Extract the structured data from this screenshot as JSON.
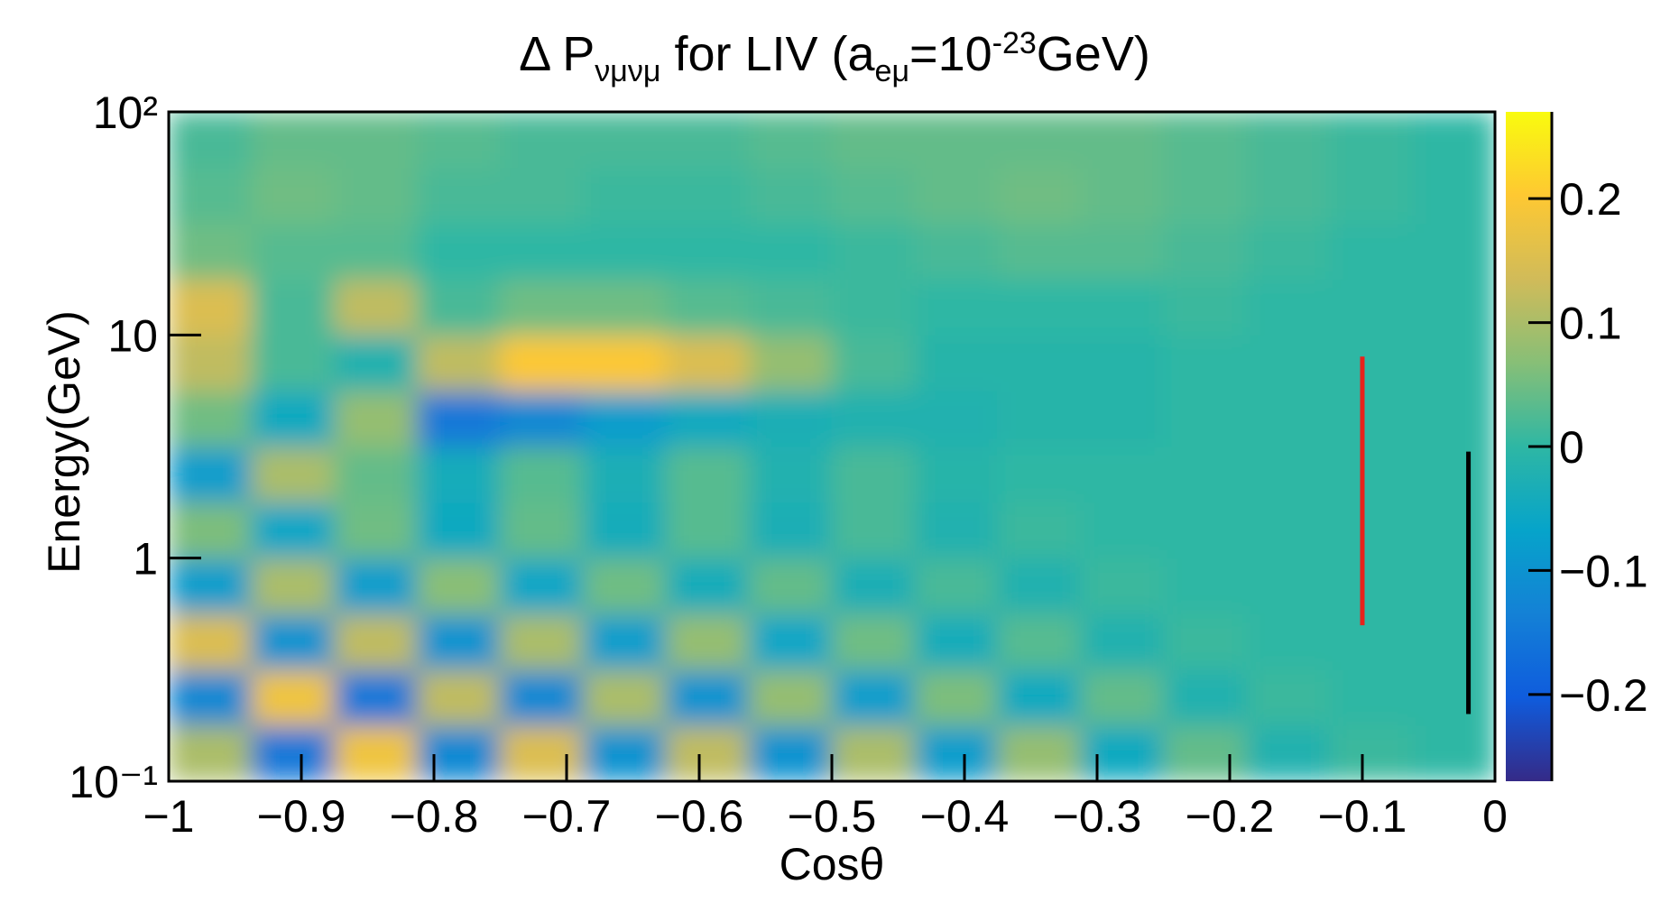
{
  "chart_data": {
    "type": "heatmap",
    "title_parts": [
      {
        "text": "Δ P"
      },
      {
        "text": "νμνμ",
        "shift": "sub"
      },
      {
        "text": " for LIV (a"
      },
      {
        "text": "eμ",
        "shift": "sub"
      },
      {
        "text": "=10"
      },
      {
        "text": "-23",
        "shift": "super"
      },
      {
        "text": "GeV)"
      }
    ],
    "x_label": "Cosθ",
    "y_label": "Energy(GeV)",
    "xlim": [
      -1,
      0
    ],
    "ylim": [
      0.1,
      100
    ],
    "y_log": true,
    "zlim": [
      -0.27,
      0.27
    ],
    "xticks": [
      {
        "value": -1,
        "label": "−1"
      },
      {
        "value": -0.9,
        "label": "−0.9"
      },
      {
        "value": -0.8,
        "label": "−0.8"
      },
      {
        "value": -0.7,
        "label": "−0.7"
      },
      {
        "value": -0.6,
        "label": "−0.6"
      },
      {
        "value": -0.5,
        "label": "−0.5"
      },
      {
        "value": -0.4,
        "label": "−0.4"
      },
      {
        "value": -0.3,
        "label": "−0.3"
      },
      {
        "value": -0.2,
        "label": "−0.2"
      },
      {
        "value": -0.1,
        "label": "−0.1"
      },
      0
    ],
    "yticks": [
      {
        "value": 0.1,
        "label": "10⁻¹"
      },
      1,
      10,
      {
        "value": 100,
        "label": "10²"
      }
    ],
    "zticks": [
      {
        "value": -0.2,
        "label": "−0.2"
      },
      {
        "value": -0.1,
        "label": "−0.1"
      },
      0,
      0.1,
      0.2
    ],
    "xbins": [
      -1,
      -0.9375,
      -0.875,
      -0.8125,
      -0.75,
      -0.6875,
      -0.625,
      -0.5625,
      -0.5,
      -0.4375,
      -0.375,
      -0.3125,
      -0.25,
      -0.1875,
      -0.125,
      -0.0625,
      0
    ],
    "ybins": [
      0.1,
      0.178,
      0.316,
      0.562,
      1,
      1.78,
      3.16,
      5.62,
      10,
      17.8,
      31.6,
      56.2,
      100
    ],
    "z": [
      [
        0.1,
        -0.15,
        0.18,
        -0.12,
        0.15,
        -0.1,
        0.12,
        -0.1,
        0.1,
        -0.08,
        0.08,
        -0.05,
        0.04,
        -0.02,
        0.01,
        0
      ],
      [
        -0.12,
        0.18,
        -0.15,
        0.12,
        -0.12,
        0.1,
        -0.1,
        0.08,
        -0.08,
        0.06,
        -0.05,
        0.04,
        -0.02,
        0.01,
        0,
        0
      ],
      [
        0.15,
        -0.1,
        0.12,
        -0.1,
        0.1,
        -0.08,
        0.08,
        -0.06,
        0.05,
        -0.04,
        0.03,
        -0.02,
        0.01,
        0,
        0,
        0
      ],
      [
        -0.08,
        0.1,
        -0.08,
        0.07,
        -0.06,
        0.05,
        -0.04,
        0.04,
        -0.03,
        0.02,
        -0.02,
        0.01,
        0,
        0,
        0,
        0
      ],
      [
        0.06,
        -0.06,
        0.05,
        -0.05,
        0.04,
        -0.04,
        0.03,
        -0.03,
        0.02,
        -0.02,
        0.01,
        0,
        0,
        0,
        0,
        0
      ],
      [
        -0.08,
        0.1,
        0.04,
        -0.04,
        0.03,
        -0.03,
        0.03,
        -0.02,
        0.02,
        -0.01,
        0,
        0,
        0,
        0,
        0,
        0
      ],
      [
        0.05,
        -0.05,
        0.08,
        -0.15,
        -0.12,
        -0.08,
        -0.05,
        -0.03,
        -0.02,
        -0.02,
        -0.01,
        -0.01,
        0,
        0,
        0,
        0
      ],
      [
        0.12,
        0.02,
        -0.02,
        0.12,
        0.2,
        0.2,
        0.15,
        0.08,
        0.02,
        -0.01,
        -0.01,
        -0.01,
        0,
        0,
        0,
        0
      ],
      [
        0.15,
        0.02,
        0.12,
        0.02,
        0.05,
        0.05,
        0.03,
        0.02,
        0.01,
        0,
        0,
        0,
        0.01,
        0,
        0,
        0
      ],
      [
        0.05,
        0.03,
        0.03,
        0,
        0,
        0,
        0,
        0,
        0.01,
        0.02,
        0.03,
        0.03,
        0.02,
        0.01,
        0,
        0
      ],
      [
        0.03,
        0.05,
        0.04,
        0.02,
        0.02,
        0.01,
        0.01,
        0.02,
        0.03,
        0.04,
        0.05,
        0.04,
        0.03,
        0.02,
        0.01,
        0
      ],
      [
        0.02,
        0.04,
        0.04,
        0.03,
        0.02,
        0.02,
        0.02,
        0.03,
        0.04,
        0.04,
        0.04,
        0.04,
        0.03,
        0.02,
        0.01,
        0
      ]
    ],
    "lines": [
      {
        "x": -0.1,
        "y": [
          0.5,
          8
        ],
        "color": "#e8221b"
      },
      {
        "x": -0.02,
        "y": [
          0.2,
          3
        ],
        "color": "#000000"
      }
    ]
  }
}
